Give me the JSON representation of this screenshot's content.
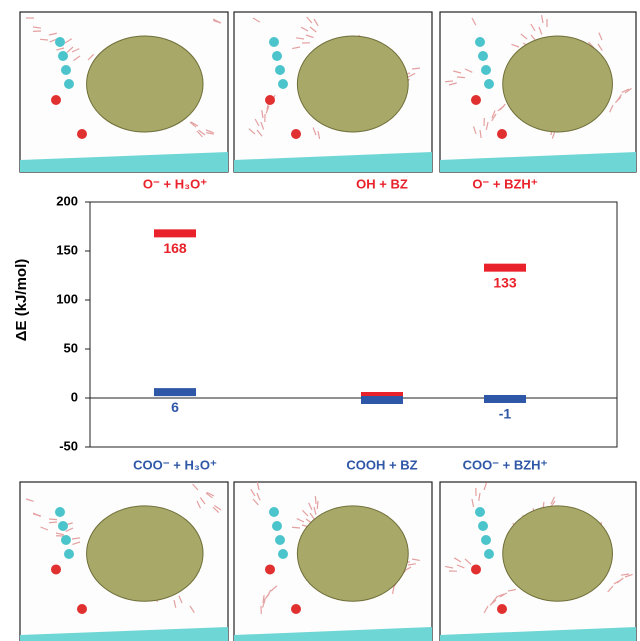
{
  "chart_data": {
    "type": "level",
    "ylabel": "ΔE (kJ/mol)",
    "ylim": [
      -50,
      200
    ],
    "yticks": [
      -50,
      0,
      50,
      100,
      150,
      200
    ],
    "series": [
      {
        "color": "#e8212a",
        "categories": [
          "O⁻ + H₃O⁺",
          "OH + BZ",
          "O⁻ + BZH⁺"
        ],
        "values": [
          168,
          0,
          133
        ],
        "value_labels": [
          "168",
          null,
          "133"
        ]
      },
      {
        "color": "#2f57a7",
        "categories": [
          "COO⁻ + H₃O⁺",
          "COOH + BZ",
          "COO⁻ + BZH⁺"
        ],
        "values": [
          6,
          0,
          -1
        ],
        "value_labels": [
          "6",
          null,
          "-1"
        ]
      }
    ]
  }
}
